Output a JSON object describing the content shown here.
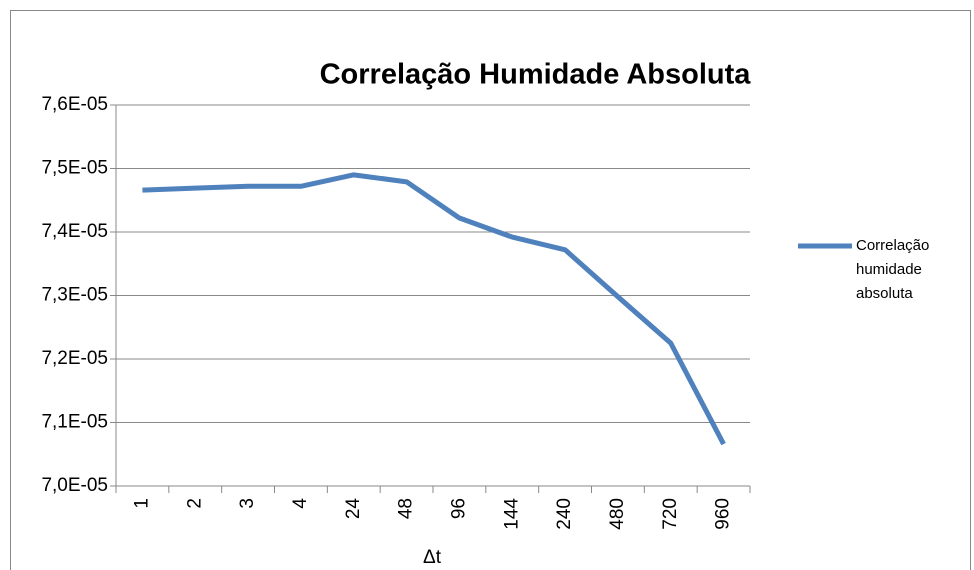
{
  "chart_data": {
    "type": "line",
    "title": "Correlação Humidade Absoluta",
    "x_label": "Δt",
    "categories": [
      "1",
      "2",
      "3",
      "4",
      "24",
      "48",
      "96",
      "144",
      "240",
      "480",
      "720",
      "960"
    ],
    "series": [
      {
        "name": "Correlação humidade absoluta",
        "color": "#4f81bd",
        "values": [
          7.466e-05,
          7.469e-05,
          7.472e-05,
          7.472e-05,
          7.49e-05,
          7.479e-05,
          7.422e-05,
          7.392e-05,
          7.372e-05,
          7.298e-05,
          7.225e-05,
          7.066e-05
        ]
      }
    ],
    "ylim": [
      7e-05,
      7.6e-05
    ],
    "yticks": [
      {
        "value": 7e-05,
        "label": "7,0E-05"
      },
      {
        "value": 7.1e-05,
        "label": "7,1E-05"
      },
      {
        "value": 7.2e-05,
        "label": "7,2E-05"
      },
      {
        "value": 7.3e-05,
        "label": "7,3E-05"
      },
      {
        "value": 7.4e-05,
        "label": "7,4E-05"
      },
      {
        "value": 7.5e-05,
        "label": "7,5E-05"
      },
      {
        "value": 7.6e-05,
        "label": "7,6E-05"
      }
    ],
    "grid": true,
    "legend": "right"
  }
}
